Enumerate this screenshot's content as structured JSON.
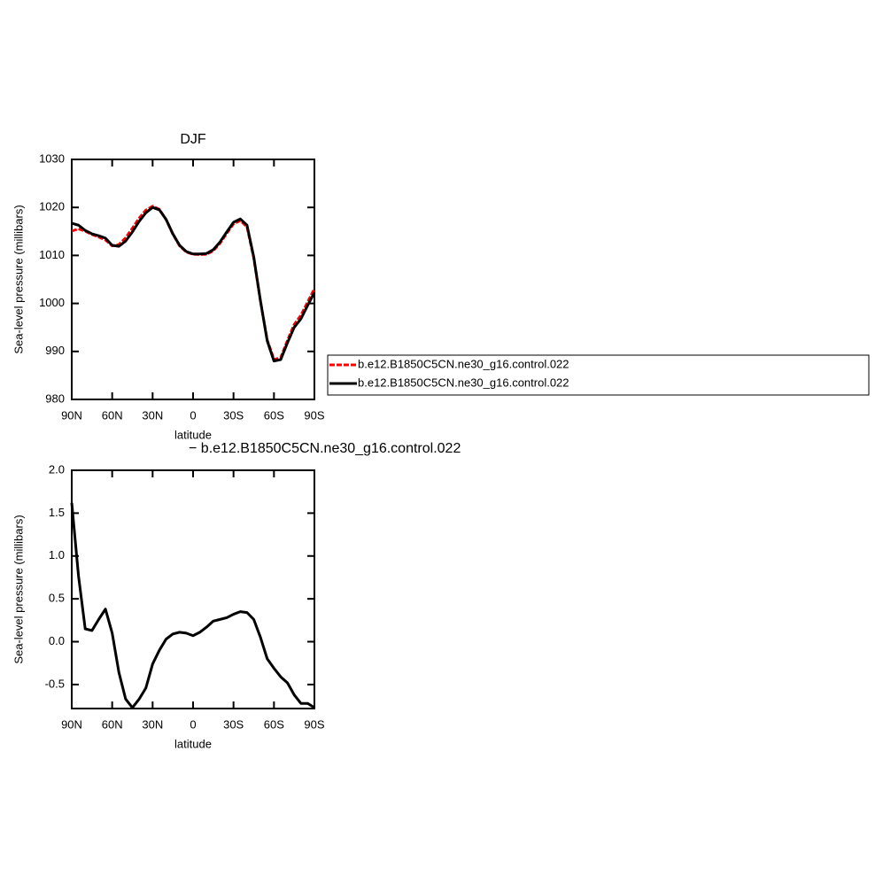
{
  "chart_data": [
    {
      "type": "line",
      "title": "DJF",
      "ylabel": "Sea-level pressure (millibars)",
      "xlabel": "latitude",
      "x": [
        90,
        85,
        80,
        75,
        70,
        65,
        60,
        55,
        50,
        45,
        40,
        35,
        30,
        25,
        20,
        15,
        10,
        5,
        0,
        -5,
        -10,
        -15,
        -20,
        -25,
        -30,
        -35,
        -40,
        -45,
        -50,
        -55,
        -60,
        -65,
        -70,
        -75,
        -80,
        -85,
        -90
      ],
      "xlim": [
        90,
        -90
      ],
      "xticks": [
        {
          "value": 90,
          "label": "90N"
        },
        {
          "value": 60,
          "label": "60N"
        },
        {
          "value": 30,
          "label": "30N"
        },
        0,
        {
          "value": -30,
          "label": "30S"
        },
        {
          "value": -60,
          "label": "60S"
        },
        {
          "value": -90,
          "label": "90S"
        }
      ],
      "ylim": [
        980,
        1030
      ],
      "yticks": [
        980,
        990,
        1000,
        1010,
        1020,
        1030
      ],
      "legend": "right",
      "series": [
        {
          "name": "b.e12.B1850C5CN.ne30_g16.control.022",
          "color": "#ff0000",
          "line_style": "dashed",
          "values": [
            1015.08,
            1015.53,
            1015.05,
            1014.37,
            1013.84,
            1013.22,
            1012.0,
            1012.26,
            1013.67,
            1015.67,
            1017.77,
            1019.44,
            1020.26,
            1019.6,
            1017.47,
            1014.41,
            1011.99,
            1010.7,
            1010.23,
            1010.19,
            1010.23,
            1010.96,
            1012.54,
            1014.62,
            1016.58,
            1017.25,
            1015.96,
            1009.44,
            1000.45,
            992.4,
            988.31,
            988.71,
            992.28,
            995.62,
            997.52,
            1000.32,
            1003.07
          ]
        },
        {
          "name": "b.e12.B1850C5CN.ne30_g16.control.022",
          "color": "#000000",
          "line_style": "solid",
          "values": [
            1016.7,
            1016.3,
            1015.2,
            1014.5,
            1014.1,
            1013.6,
            1012.1,
            1011.9,
            1013.0,
            1014.9,
            1017.1,
            1018.9,
            1020.0,
            1019.5,
            1017.5,
            1014.5,
            1012.1,
            1010.8,
            1010.3,
            1010.3,
            1010.4,
            1011.2,
            1012.8,
            1014.9,
            1016.9,
            1017.6,
            1016.3,
            1009.7,
            1000.5,
            992.2,
            988.0,
            988.3,
            991.8,
            995.0,
            996.8,
            999.6,
            1002.3
          ]
        }
      ]
    },
    {
      "type": "line",
      "title": "−  b.e12.B1850C5CN.ne30_g16.control.022",
      "ylabel": "Sea-level pressure (millibars)",
      "xlabel": "latitude",
      "x": [
        90,
        85,
        80,
        75,
        70,
        65,
        60,
        55,
        50,
        45,
        40,
        35,
        30,
        25,
        20,
        15,
        10,
        5,
        0,
        -5,
        -10,
        -15,
        -20,
        -25,
        -30,
        -35,
        -40,
        -45,
        -50,
        -55,
        -60,
        -65,
        -70,
        -75,
        -80,
        -85,
        -90
      ],
      "xlim": [
        90,
        -90
      ],
      "xticks": [
        {
          "value": 90,
          "label": "90N"
        },
        {
          "value": 60,
          "label": "60N"
        },
        {
          "value": 30,
          "label": "30N"
        },
        0,
        {
          "value": -30,
          "label": "30S"
        },
        {
          "value": -60,
          "label": "60S"
        },
        {
          "value": -90,
          "label": "90S"
        }
      ],
      "ylim": [
        -0.78,
        2.0
      ],
      "yticks": [
        -0.5,
        {
          "value": 0,
          "label": "0.0"
        },
        0.5,
        {
          "value": 1,
          "label": "1.0"
        },
        1.5,
        {
          "value": 2,
          "label": "2.0"
        }
      ],
      "series": [
        {
          "color": "#000000",
          "line_style": "solid",
          "values": [
            1.62,
            0.77,
            0.15,
            0.13,
            0.26,
            0.38,
            0.1,
            -0.36,
            -0.67,
            -0.77,
            -0.67,
            -0.54,
            -0.26,
            -0.1,
            0.03,
            0.09,
            0.11,
            0.1,
            0.07,
            0.11,
            0.17,
            0.24,
            0.26,
            0.28,
            0.32,
            0.35,
            0.34,
            0.26,
            0.05,
            -0.2,
            -0.31,
            -0.41,
            -0.48,
            -0.62,
            -0.72,
            -0.72,
            -0.77
          ]
        }
      ]
    }
  ]
}
